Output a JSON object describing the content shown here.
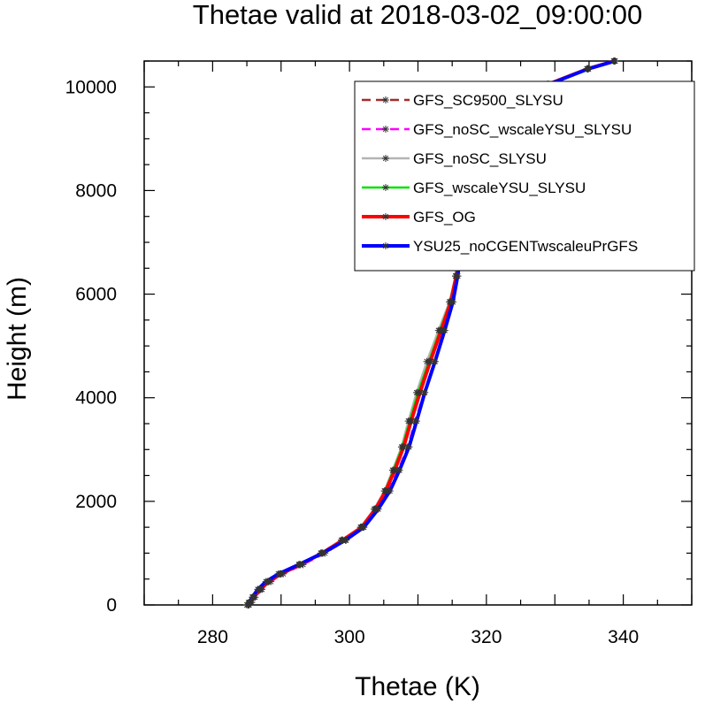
{
  "chart_data": {
    "type": "line",
    "title": "Thetae valid at 2018-03-02_09:00:00",
    "xlabel": "Thetae (K)",
    "ylabel": "Height (m)",
    "xlim": [
      270,
      350
    ],
    "ylim": [
      0,
      10500
    ],
    "xticks": [
      280,
      300,
      320,
      340
    ],
    "yticks": [
      0,
      2000,
      4000,
      6000,
      8000,
      10000
    ],
    "grid": false,
    "legend_position": "top-right",
    "heights": [
      0,
      50,
      150,
      300,
      450,
      600,
      780,
      1000,
      1250,
      1500,
      1850,
      2200,
      2600,
      3050,
      3550,
      4100,
      4700,
      5300,
      5850,
      6350,
      6850,
      7300,
      7750,
      8200,
      8650,
      9000,
      9350,
      9700,
      10050,
      10350,
      10500
    ],
    "series": [
      {
        "name": "GFS_SC9500_SLYSU",
        "color": "#a52a2a",
        "width": 2.5,
        "dash": "10,6",
        "values": [
          285.3,
          285.6,
          286.0,
          287.0,
          288.2,
          290.0,
          292.8,
          296.0,
          299.0,
          301.8,
          303.8,
          305.3,
          306.6,
          307.9,
          309.0,
          310.3,
          311.8,
          313.4,
          314.8,
          315.6,
          316.1,
          316.6,
          317.0,
          317.3,
          317.6,
          318.2,
          320.3,
          323.8,
          329.0,
          334.8,
          338.7
        ]
      },
      {
        "name": "GFS_noSC_wscaleYSU_SLYSU",
        "color": "#ff00ff",
        "width": 2.5,
        "dash": "10,6",
        "values": [
          285.3,
          285.7,
          286.2,
          287.2,
          288.5,
          290.3,
          293.2,
          296.4,
          299.5,
          302.0,
          304.0,
          305.7,
          307.1,
          308.5,
          309.6,
          310.9,
          312.4,
          313.9,
          315.1,
          315.8,
          316.3,
          316.7,
          317.1,
          317.4,
          317.7,
          318.3,
          320.4,
          323.9,
          329.1,
          334.9,
          338.8
        ]
      },
      {
        "name": "GFS_noSC_SLYSU",
        "color": "#b4b4b4",
        "width": 2.5,
        "dash": "",
        "values": [
          285.2,
          285.5,
          285.9,
          286.8,
          288.0,
          289.8,
          292.6,
          295.8,
          298.8,
          301.6,
          303.6,
          305.1,
          306.3,
          307.6,
          308.6,
          309.8,
          311.3,
          313.0,
          314.6,
          315.5,
          316.0,
          316.5,
          316.9,
          317.2,
          317.5,
          318.1,
          320.2,
          323.7,
          328.9,
          334.7,
          338.6
        ]
      },
      {
        "name": "GFS_wscaleYSU_SLYSU",
        "color": "#00e000",
        "width": 2.5,
        "dash": "",
        "values": [
          285.2,
          285.5,
          285.9,
          286.9,
          288.1,
          289.9,
          292.7,
          295.9,
          298.9,
          301.7,
          303.7,
          305.2,
          306.4,
          307.7,
          308.8,
          310.0,
          311.6,
          313.2,
          314.7,
          315.5,
          316.0,
          316.5,
          316.9,
          317.2,
          317.5,
          318.1,
          320.2,
          323.7,
          328.9,
          334.7,
          338.6
        ]
      },
      {
        "name": "GFS_OG",
        "color": "#ff0000",
        "width": 4,
        "dash": "",
        "values": [
          285.3,
          285.6,
          286.0,
          287.0,
          288.2,
          290.0,
          292.8,
          296.0,
          299.0,
          301.8,
          303.8,
          305.3,
          306.6,
          307.9,
          309.0,
          310.3,
          311.8,
          313.4,
          314.8,
          315.6,
          316.1,
          316.6,
          317.0,
          317.3,
          317.6,
          318.2,
          320.3,
          323.8,
          329.0,
          334.8,
          338.7
        ]
      },
      {
        "name": "YSU25_noCGENTwscaleuPrGFS",
        "color": "#0000ff",
        "width": 4,
        "dash": "",
        "values": [
          285.0,
          285.3,
          285.8,
          286.6,
          287.8,
          289.6,
          292.6,
          296.1,
          299.4,
          302.1,
          304.2,
          305.9,
          307.3,
          308.7,
          309.8,
          311.0,
          312.5,
          313.9,
          315.1,
          315.8,
          316.3,
          316.7,
          317.1,
          317.4,
          317.7,
          318.3,
          320.4,
          323.9,
          329.1,
          334.9,
          338.8
        ]
      }
    ]
  }
}
